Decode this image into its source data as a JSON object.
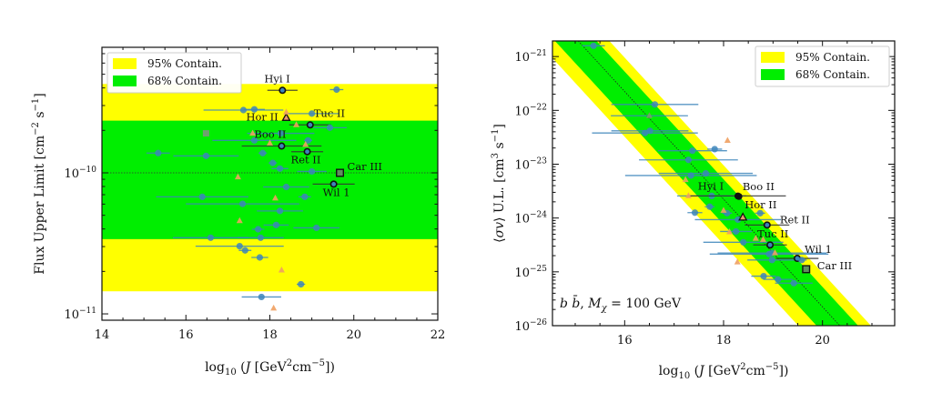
{
  "chart_data": [
    {
      "type": "scatter",
      "xlabel": "log10 (J [GeV^2cm^-5])",
      "ylabel": "Flux Upper Limit [cm^-2 s^-1]",
      "xlim": [
        14,
        22
      ],
      "ylim_log10": [
        -11.045,
        -9.11
      ],
      "yscale": "log",
      "x_ticks": [
        14,
        16,
        18,
        20,
        22
      ],
      "y_ticks_log10": [
        -10,
        -11
      ],
      "median_line_log10": -10.0,
      "bands": [
        {
          "name": "95% Contain.",
          "color": "#ffff00",
          "range_log10": [
            -10.84,
            -9.37
          ]
        },
        {
          "name": "68% Contain.",
          "color": "#00ee00",
          "range_log10": [
            -10.47,
            -9.63
          ]
        }
      ],
      "legend": [
        "95% Contain.",
        "68% Contain."
      ],
      "legend_position": "top-left",
      "points": [
        {
          "x": 18.3,
          "y": -9.415,
          "xerr": 0.36,
          "kind": "highlight",
          "label": "Hyi I"
        },
        {
          "x": 19.59,
          "y": -9.41,
          "xerr": 0.16,
          "kind": "dwarf"
        },
        {
          "x": 17.37,
          "y": -9.555,
          "xerr": 0.95,
          "kind": "dwarf"
        },
        {
          "x": 17.63,
          "y": -9.55,
          "xerr": 0.25,
          "kind": "dwarf"
        },
        {
          "x": 18.39,
          "y": -9.61,
          "xerr": 0,
          "kind": "highlight-triangle",
          "label": "Hor II"
        },
        {
          "x": 19.0,
          "y": -9.58,
          "xerr": 0.65,
          "kind": "dwarf"
        },
        {
          "x": 18.96,
          "y": -9.66,
          "xerr": 0.5,
          "kind": "highlight",
          "label": "Tuc II"
        },
        {
          "x": 19.43,
          "y": -9.68,
          "xerr": 0.4,
          "kind": "dwarf"
        },
        {
          "x": 16.48,
          "y": -9.72,
          "xerr": 0,
          "kind": "square-grey"
        },
        {
          "x": 17.63,
          "y": -9.77,
          "xerr": 1.0,
          "kind": "dwarf"
        },
        {
          "x": 18.26,
          "y": -9.72,
          "xerr": 0.8,
          "kind": "dwarf"
        },
        {
          "x": 18.28,
          "y": -9.81,
          "xerr": 0.95,
          "kind": "highlight",
          "label": "Boo II"
        },
        {
          "x": 18.91,
          "y": -9.77,
          "xerr": 0.1,
          "kind": "dwarf"
        },
        {
          "x": 15.34,
          "y": -9.86,
          "xerr": 0.28,
          "kind": "dwarf"
        },
        {
          "x": 16.48,
          "y": -9.88,
          "xerr": 0.78,
          "kind": "dwarf"
        },
        {
          "x": 17.83,
          "y": -9.86,
          "xerr": 0.1,
          "kind": "dwarf"
        },
        {
          "x": 18.89,
          "y": -9.85,
          "xerr": 0.38,
          "kind": "highlight",
          "label": "Ret II"
        },
        {
          "x": 18.07,
          "y": -9.93,
          "xerr": 0.1,
          "kind": "dwarf"
        },
        {
          "x": 18.24,
          "y": -9.97,
          "xerr": 0.2,
          "kind": "dwarf"
        },
        {
          "x": 19.0,
          "y": -9.99,
          "xerr": 0.35,
          "kind": "dwarf"
        },
        {
          "x": 19.67,
          "y": -10.0,
          "xerr": 0,
          "kind": "highlight-square",
          "label": "Car III"
        },
        {
          "x": 19.52,
          "y": -10.08,
          "xerr": 0.5,
          "kind": "highlight",
          "label": "Wil 1"
        },
        {
          "x": 18.39,
          "y": -10.1,
          "xerr": 0.55,
          "kind": "dwarf"
        },
        {
          "x": 16.39,
          "y": -10.17,
          "xerr": 1.1,
          "kind": "dwarf"
        },
        {
          "x": 18.83,
          "y": -10.17,
          "xerr": 0.15,
          "kind": "dwarf"
        },
        {
          "x": 17.35,
          "y": -10.22,
          "xerr": 1.35,
          "kind": "dwarf"
        },
        {
          "x": 18.24,
          "y": -10.27,
          "xerr": 0.55,
          "kind": "dwarf"
        },
        {
          "x": 18.15,
          "y": -10.37,
          "xerr": 0.3,
          "kind": "dwarf"
        },
        {
          "x": 17.72,
          "y": -10.4,
          "xerr": 0.15,
          "kind": "dwarf"
        },
        {
          "x": 19.11,
          "y": -10.39,
          "xerr": 0.55,
          "kind": "dwarf"
        },
        {
          "x": 16.59,
          "y": -10.46,
          "xerr": 0.9,
          "kind": "dwarf"
        },
        {
          "x": 17.78,
          "y": -10.46,
          "xerr": 0.55,
          "kind": "dwarf"
        },
        {
          "x": 17.28,
          "y": -10.52,
          "xerr": 1.05,
          "kind": "dwarf"
        },
        {
          "x": 17.41,
          "y": -10.55,
          "xerr": 0.15,
          "kind": "dwarf"
        },
        {
          "x": 17.76,
          "y": -10.6,
          "xerr": 0.2,
          "kind": "dwarf"
        },
        {
          "x": 18.74,
          "y": -10.79,
          "xerr": 0.1,
          "kind": "dwarf"
        },
        {
          "x": 17.8,
          "y": -10.88,
          "xerr": 0.47,
          "kind": "dwarf"
        },
        {
          "x": 18.39,
          "y": -9.57,
          "kind": "triangle"
        },
        {
          "x": 18.63,
          "y": -9.66,
          "kind": "triangle"
        },
        {
          "x": 17.59,
          "y": -9.72,
          "kind": "triangle"
        },
        {
          "x": 18.0,
          "y": -9.79,
          "kind": "triangle"
        },
        {
          "x": 18.85,
          "y": -9.8,
          "kind": "triangle"
        },
        {
          "x": 17.24,
          "y": -10.03,
          "kind": "triangle"
        },
        {
          "x": 18.13,
          "y": -10.18,
          "kind": "triangle"
        },
        {
          "x": 17.28,
          "y": -10.34,
          "kind": "triangle"
        },
        {
          "x": 18.28,
          "y": -10.69,
          "kind": "triangle"
        },
        {
          "x": 18.09,
          "y": -10.96,
          "kind": "triangle"
        }
      ]
    },
    {
      "type": "scatter",
      "xlabel": "log10 (J [GeV^2cm^-5])",
      "ylabel": "⟨σv⟩ U.L. [cm^3 s^-1]",
      "annotation": "b b̄, M_χ = 100 GeV",
      "xlim": [
        14.54,
        21.46
      ],
      "ylim_log10": [
        -26.0,
        -20.71
      ],
      "yscale": "log",
      "x_ticks": [
        16,
        18,
        20
      ],
      "y_ticks_log10": [
        -21,
        -22,
        -23,
        -24,
        -25,
        -26
      ],
      "median_line": {
        "slope": -1,
        "intercept_log10": -5.65
      },
      "bands": [
        {
          "name": "95% Contain.",
          "color": "#ffff00",
          "offset_log10": [
            -0.84,
            0.63
          ]
        },
        {
          "name": "68% Contain.",
          "color": "#00ee00",
          "offset_log10": [
            -0.47,
            0.37
          ]
        }
      ],
      "legend": [
        "95% Contain.",
        "68% Contain."
      ],
      "legend_position": "top-right",
      "points": [
        {
          "x": 15.37,
          "y": -20.8,
          "xerr": 0.23,
          "kind": "dwarf"
        },
        {
          "x": 16.61,
          "y": -21.89,
          "xerr": 0.88,
          "kind": "dwarf"
        },
        {
          "x": 16.5,
          "y": -22.1,
          "xerr": 0.78,
          "kind": "triangle-grey"
        },
        {
          "x": 16.41,
          "y": -22.42,
          "xerr": 1.07,
          "kind": "dwarf"
        },
        {
          "x": 16.51,
          "y": -22.38,
          "xerr": 0.78,
          "kind": "dwarf"
        },
        {
          "x": 17.37,
          "y": -22.75,
          "xerr": 0.7,
          "kind": "dwarf"
        },
        {
          "x": 17.82,
          "y": -22.72,
          "xerr": 0.15,
          "kind": "dwarf"
        },
        {
          "x": 17.29,
          "y": -22.92,
          "xerr": 1.0,
          "kind": "dwarf"
        },
        {
          "x": 17.34,
          "y": -23.21,
          "xerr": 1.33,
          "kind": "dwarf"
        },
        {
          "x": 17.64,
          "y": -23.17,
          "xerr": 0.95,
          "kind": "dwarf"
        },
        {
          "x": 17.76,
          "y": -23.59,
          "xerr": 0.7,
          "kind": "dwarf"
        },
        {
          "x": 18.29,
          "y": -23.59,
          "xerr": 0.97,
          "kind": "highlight-filled",
          "label": "Hyi I"
        },
        {
          "x": 18.31,
          "y": -23.6,
          "xerr": 0,
          "kind": "highlight-filled",
          "label": "Boo II"
        },
        {
          "x": 17.42,
          "y": -23.9,
          "xerr": 0.15,
          "kind": "dwarf"
        },
        {
          "x": 17.72,
          "y": -23.79,
          "xerr": 0.1,
          "kind": "dwarf"
        },
        {
          "x": 18.07,
          "y": -23.91,
          "xerr": 0.1,
          "kind": "dwarf"
        },
        {
          "x": 18.74,
          "y": -23.91,
          "xerr": 0.1,
          "kind": "dwarf"
        },
        {
          "x": 18.29,
          "y": -24.03,
          "xerr": 0.87,
          "kind": "dwarf"
        },
        {
          "x": 18.39,
          "y": -23.99,
          "xerr": 0,
          "kind": "highlight-triangle",
          "label": "Hor II"
        },
        {
          "x": 18.88,
          "y": -24.13,
          "xerr": 0.45,
          "kind": "highlight",
          "label": "Ret II"
        },
        {
          "x": 18.25,
          "y": -24.25,
          "xerr": 0.32,
          "kind": "dwarf"
        },
        {
          "x": 18.4,
          "y": -24.45,
          "xerr": 0.81,
          "kind": "dwarf"
        },
        {
          "x": 18.94,
          "y": -24.5,
          "xerr": 0.34,
          "kind": "highlight",
          "label": "Tuc II"
        },
        {
          "x": 18.92,
          "y": -24.67,
          "xerr": 1.2,
          "kind": "dwarf"
        },
        {
          "x": 18.98,
          "y": -24.65,
          "xerr": 1.1,
          "kind": "dwarf"
        },
        {
          "x": 18.98,
          "y": -24.78,
          "xerr": 0.5,
          "kind": "dwarf"
        },
        {
          "x": 19.49,
          "y": -24.75,
          "xerr": 0.43,
          "kind": "highlight",
          "label": "Wil 1"
        },
        {
          "x": 19.58,
          "y": -24.78,
          "xerr": 0.1,
          "kind": "dwarf"
        },
        {
          "x": 19.67,
          "y": -24.95,
          "xerr": 0,
          "kind": "highlight-square",
          "label": "Car III"
        },
        {
          "x": 18.81,
          "y": -25.08,
          "xerr": 0.25,
          "kind": "dwarf"
        },
        {
          "x": 19.1,
          "y": -25.14,
          "xerr": 0.3,
          "kind": "dwarf"
        },
        {
          "x": 19.42,
          "y": -25.21,
          "xerr": 0.38,
          "kind": "dwarf"
        },
        {
          "x": 18.08,
          "y": -22.56,
          "kind": "triangle"
        },
        {
          "x": 17.23,
          "y": -23.29,
          "kind": "triangle"
        },
        {
          "x": 17.29,
          "y": -23.59,
          "kind": "triangle"
        },
        {
          "x": 18.0,
          "y": -23.86,
          "kind": "triangle"
        },
        {
          "x": 18.12,
          "y": -24.26,
          "kind": "triangle"
        },
        {
          "x": 18.65,
          "y": -24.38,
          "kind": "triangle"
        },
        {
          "x": 18.8,
          "y": -24.4,
          "kind": "triangle"
        },
        {
          "x": 19.04,
          "y": -24.65,
          "kind": "triangle"
        },
        {
          "x": 18.28,
          "y": -24.82,
          "kind": "triangle"
        }
      ]
    }
  ],
  "colors": {
    "dwarf": "#3d85bb",
    "triangle": "#f0a060",
    "highlight": "#111111",
    "band95": "#ffff00",
    "band68": "#00ee00"
  }
}
